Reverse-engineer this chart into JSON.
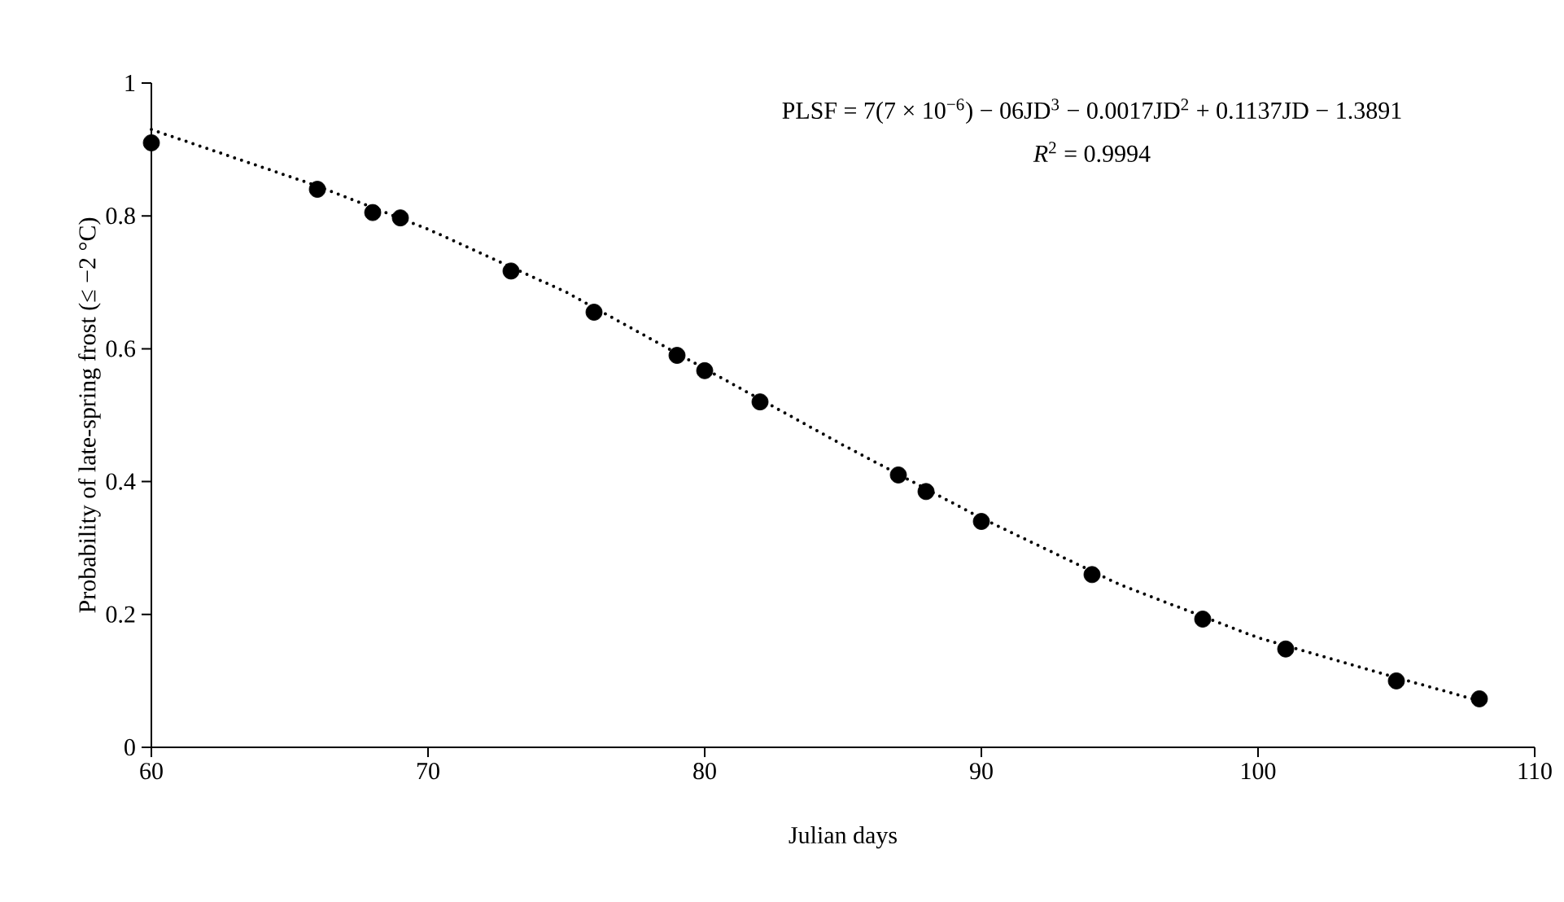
{
  "chart_data": {
    "type": "scatter",
    "xlabel": "Julian days",
    "ylabel": "Probability of late-spring frost (≤ −2 °C)",
    "annotations": [
      "PLSF = 7(7 × 10$^{−6}$) − 06JD$^{3}$ − 0.0017JD$^{2}$ + 0.1137JD − 1.3891",
      "*R*$^{2}$ = 0.9994"
    ],
    "xlim": [
      60,
      110
    ],
    "xticks": [
      60,
      70,
      80,
      90,
      100,
      110
    ],
    "ylim": [
      0,
      1
    ],
    "yticks": [
      0,
      0.2,
      0.4,
      0.6,
      0.8,
      1
    ],
    "grid": false,
    "series": [
      {
        "color": "#000000",
        "marker": "circle",
        "x": [
          60,
          66,
          68,
          69,
          73,
          76,
          79,
          80,
          82,
          87,
          88,
          90,
          94,
          98,
          101,
          105,
          108
        ],
        "values": [
          0.91,
          0.84,
          0.805,
          0.797,
          0.717,
          0.655,
          0.59,
          0.567,
          0.52,
          0.41,
          0.385,
          0.34,
          0.26,
          0.193,
          0.148,
          0.1,
          0.073
        ]
      },
      {
        "type": "line",
        "color": "#000000",
        "marker": "none",
        "line_style": "dotted",
        "x": [
          60,
          66,
          70,
          75,
          80,
          85,
          90,
          95,
          100,
          105,
          108
        ],
        "values": [
          0.93,
          0.845,
          0.78,
          0.685,
          0.57,
          0.455,
          0.345,
          0.245,
          0.165,
          0.105,
          0.07
        ]
      }
    ]
  }
}
